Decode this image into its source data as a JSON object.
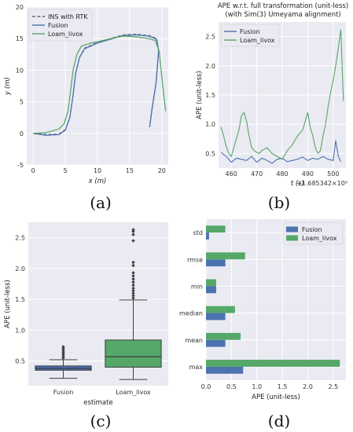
{
  "panel_labels": [
    "(a)",
    "(b)",
    "(c)",
    "(d)"
  ],
  "colors": {
    "fusion": "#4c72b0",
    "loam": "#55a868",
    "rtk": "#666666",
    "panel_bg": "#eaeaf2",
    "grid": "#ffffff"
  },
  "chart_data": [
    {
      "id": "a",
      "type": "line",
      "title": "",
      "xlabel": "x (m)",
      "ylabel": "y (m)",
      "xlim": [
        -1,
        21
      ],
      "ylim": [
        -5,
        20
      ],
      "xticks": [
        0,
        5,
        10,
        15,
        20
      ],
      "yticks": [
        -5,
        0,
        5,
        10,
        15,
        20
      ],
      "legend_position": "top-left",
      "series": [
        {
          "name": "INS with RTK",
          "style": "dashed",
          "points": [
            [
              0,
              0
            ],
            [
              2,
              -0.2
            ],
            [
              4,
              -0.1
            ],
            [
              5,
              0.6
            ],
            [
              5.7,
              2.5
            ],
            [
              6.2,
              6
            ],
            [
              6.6,
              9.5
            ],
            [
              7.2,
              12
            ],
            [
              8,
              13.5
            ],
            [
              10,
              14.4
            ],
            [
              12,
              15
            ],
            [
              14,
              15.6
            ],
            [
              16,
              15.7
            ],
            [
              18,
              15.5
            ],
            [
              19.2,
              15
            ],
            [
              19.5,
              13
            ],
            [
              19.1,
              8
            ],
            [
              18.5,
              4
            ],
            [
              18.1,
              1
            ]
          ]
        },
        {
          "name": "Fusion",
          "style": "solid",
          "points": [
            [
              0,
              0
            ],
            [
              2,
              -0.3
            ],
            [
              4,
              -0.2
            ],
            [
              5,
              0.5
            ],
            [
              5.7,
              2.5
            ],
            [
              6.2,
              6
            ],
            [
              6.6,
              9.5
            ],
            [
              7.2,
              12
            ],
            [
              8,
              13.4
            ],
            [
              10,
              14.3
            ],
            [
              12,
              14.9
            ],
            [
              14,
              15.5
            ],
            [
              16,
              15.6
            ],
            [
              18,
              15.4
            ],
            [
              19.2,
              14.9
            ],
            [
              19.5,
              13
            ],
            [
              19.1,
              8
            ],
            [
              18.5,
              4
            ],
            [
              18.1,
              1
            ]
          ]
        },
        {
          "name": "Loam_livox",
          "style": "solid",
          "points": [
            [
              0,
              0
            ],
            [
              2,
              0.1
            ],
            [
              4,
              0.7
            ],
            [
              4.8,
              1.5
            ],
            [
              5.4,
              3.5
            ],
            [
              5.8,
              6.5
            ],
            [
              6.2,
              10
            ],
            [
              6.8,
              12.5
            ],
            [
              7.5,
              13.8
            ],
            [
              9,
              14.3
            ],
            [
              10,
              14.5
            ],
            [
              12,
              15
            ],
            [
              14,
              15.4
            ],
            [
              16,
              15.3
            ],
            [
              18,
              15
            ],
            [
              19,
              14.7
            ],
            [
              19.6,
              13
            ],
            [
              20.1,
              8
            ],
            [
              20.6,
              3.5
            ]
          ]
        }
      ]
    },
    {
      "id": "b",
      "type": "line",
      "title": "APE w.r.t. full transformation (unit-less)",
      "subtitle": "(with Sim(3) Umeyama alignment)",
      "xlabel": "t (s)",
      "x_offset_text": "+1.685342×10⁹",
      "ylabel": "APE (unit-less)",
      "xlim": [
        455,
        505
      ],
      "ylim": [
        0.25,
        2.75
      ],
      "xticks": [
        460,
        470,
        480,
        490,
        500
      ],
      "yticks": [
        0.5,
        1.0,
        1.5,
        2.0,
        2.5
      ],
      "legend_position": "top-left",
      "series": [
        {
          "name": "Fusion",
          "x": [
            456,
            458,
            460,
            462,
            464,
            466,
            468,
            470,
            472,
            474,
            476,
            478,
            480,
            482,
            484,
            486,
            488,
            490,
            492,
            494,
            496,
            498,
            500,
            501,
            502,
            503
          ],
          "y": [
            0.52,
            0.45,
            0.35,
            0.42,
            0.4,
            0.38,
            0.45,
            0.35,
            0.42,
            0.38,
            0.33,
            0.4,
            0.42,
            0.36,
            0.38,
            0.4,
            0.44,
            0.38,
            0.42,
            0.4,
            0.45,
            0.4,
            0.38,
            0.72,
            0.45,
            0.36
          ]
        },
        {
          "name": "Loam_livox",
          "x": [
            456,
            457,
            458,
            459,
            460,
            461,
            462,
            463,
            464,
            465,
            466,
            467,
            468,
            469,
            470,
            471,
            472,
            474,
            476,
            478,
            480,
            482,
            484,
            486,
            488,
            489,
            490,
            491,
            492,
            493,
            494,
            495,
            496,
            497,
            498,
            499,
            500,
            501,
            502,
            503,
            504
          ],
          "y": [
            0.95,
            0.8,
            0.62,
            0.5,
            0.45,
            0.6,
            0.75,
            0.9,
            1.15,
            1.2,
            1.05,
            0.8,
            0.6,
            0.55,
            0.52,
            0.5,
            0.55,
            0.6,
            0.5,
            0.45,
            0.4,
            0.55,
            0.65,
            0.8,
            0.9,
            1.05,
            1.2,
            0.95,
            0.8,
            0.6,
            0.5,
            0.55,
            0.8,
            1.0,
            1.3,
            1.55,
            1.75,
            2.0,
            2.3,
            2.62,
            1.4
          ]
        }
      ]
    },
    {
      "id": "c",
      "type": "box",
      "title": "",
      "xlabel": "estimate",
      "ylabel": "APE (unit-less)",
      "ylim": [
        0.1,
        2.75
      ],
      "yticks": [
        0.5,
        1.0,
        1.5,
        2.0,
        2.5
      ],
      "categories": [
        "Fusion",
        "Loam_livox"
      ],
      "boxes": [
        {
          "name": "Fusion",
          "whisker_low": 0.22,
          "q1": 0.35,
          "median": 0.38,
          "q3": 0.42,
          "whisker_high": 0.52,
          "outliers": [
            0.55,
            0.58,
            0.61,
            0.64,
            0.67,
            0.7,
            0.73
          ]
        },
        {
          "name": "Loam_livox",
          "whisker_low": 0.2,
          "q1": 0.4,
          "median": 0.57,
          "q3": 0.84,
          "whisker_high": 1.49,
          "outliers": [
            1.52,
            1.56,
            1.6,
            1.64,
            1.68,
            1.73,
            1.78,
            1.83,
            1.88,
            1.93,
            2.05,
            2.1,
            2.45,
            2.55,
            2.6,
            2.63
          ]
        }
      ]
    },
    {
      "id": "d",
      "type": "barh",
      "title": "",
      "xlabel": "APE (unit-less)",
      "ylabel": "",
      "xlim": [
        0,
        2.75
      ],
      "xticks": [
        0.0,
        0.5,
        1.0,
        1.5,
        2.0,
        2.5
      ],
      "legend_position": "top-right",
      "categories": [
        "std",
        "rmse",
        "min",
        "median",
        "mean",
        "max"
      ],
      "series": [
        {
          "name": "Fusion",
          "values": [
            0.06,
            0.38,
            0.2,
            0.38,
            0.38,
            0.73
          ]
        },
        {
          "name": "Loam_livox",
          "values": [
            0.38,
            0.77,
            0.2,
            0.57,
            0.68,
            2.63
          ]
        }
      ]
    }
  ]
}
